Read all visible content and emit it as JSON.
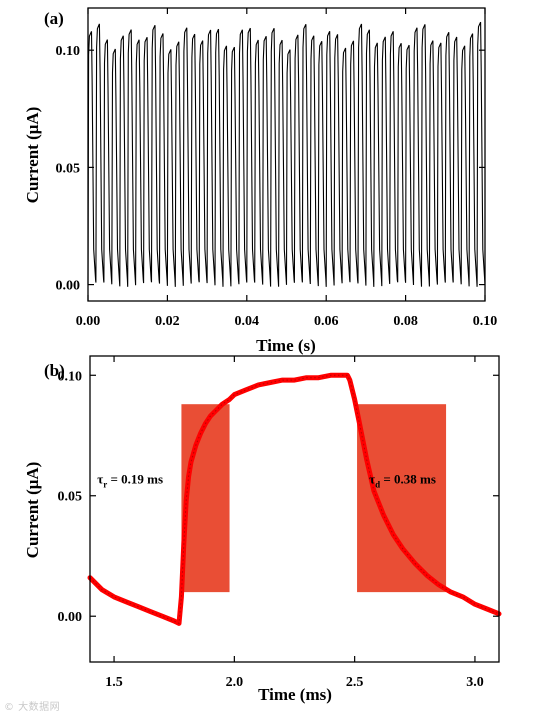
{
  "watermark": "© 大数据网",
  "chart_data": [
    {
      "panel_label": "(a)",
      "type": "line",
      "xlabel": "Time (s)",
      "ylabel": "Current (μA)",
      "xlim": [
        0.0,
        0.1
      ],
      "ylim": [
        -0.007,
        0.118
      ],
      "x_ticks": [
        "0.00",
        "0.02",
        "0.04",
        "0.06",
        "0.08",
        "0.10"
      ],
      "y_ticks": [
        "0.00",
        "0.05",
        "0.10"
      ],
      "x_tick_values": [
        0.0,
        0.02,
        0.04,
        0.06,
        0.08,
        0.1
      ],
      "y_tick_values": [
        0.0,
        0.05,
        0.1
      ],
      "grid": false,
      "line_color": "#000000",
      "cycles": 50,
      "period_s": 0.002,
      "signal_min": 0.0,
      "signal_max": 0.109,
      "series": [
        {
          "name": "",
          "description": "square-wave photoresponse, ~50 periodic on/off cycles between ~0.00 and ~0.109 μA"
        }
      ]
    },
    {
      "panel_label": "(b)",
      "type": "line",
      "xlabel": "Time (ms)",
      "ylabel": "Current (μA)",
      "xlim": [
        1.4,
        3.1
      ],
      "ylim": [
        -0.019,
        0.108
      ],
      "x_ticks": [
        "1.5",
        "2.0",
        "2.5",
        "3.0"
      ],
      "y_ticks": [
        "0.00",
        "0.05",
        "0.10"
      ],
      "x_tick_values": [
        1.5,
        2.0,
        2.5,
        3.0
      ],
      "y_tick_values": [
        0.0,
        0.05,
        0.1
      ],
      "grid": false,
      "line_color": "#ff0000",
      "shade_color": "#e8442a",
      "annotations": [
        {
          "text_main": "τ",
          "text_sub": "r",
          "text_rest": " = 0.19 ms",
          "x": 1.43,
          "y": 0.055
        },
        {
          "text_main": "τ",
          "text_sub": "d",
          "text_rest": " = 0.38 ms",
          "x": 2.56,
          "y": 0.055
        }
      ],
      "shaded_regions": [
        {
          "x0": 1.78,
          "x1": 1.98,
          "y0": 0.01,
          "y1": 0.088
        },
        {
          "x0": 2.51,
          "x1": 2.88,
          "y0": 0.01,
          "y1": 0.088
        }
      ],
      "series": [
        {
          "name": "",
          "x": [
            1.4,
            1.45,
            1.5,
            1.55,
            1.6,
            1.65,
            1.7,
            1.75,
            1.77,
            1.78,
            1.79,
            1.8,
            1.81,
            1.82,
            1.84,
            1.86,
            1.88,
            1.9,
            1.92,
            1.95,
            1.98,
            2.0,
            2.05,
            2.1,
            2.15,
            2.2,
            2.25,
            2.3,
            2.35,
            2.4,
            2.45,
            2.47,
            2.48,
            2.5,
            2.52,
            2.55,
            2.58,
            2.62,
            2.66,
            2.7,
            2.75,
            2.8,
            2.85,
            2.9,
            2.95,
            3.0,
            3.05,
            3.1
          ],
          "y": [
            0.016,
            0.011,
            0.008,
            0.006,
            0.004,
            0.002,
            0.0,
            -0.002,
            -0.003,
            0.008,
            0.03,
            0.048,
            0.058,
            0.064,
            0.071,
            0.076,
            0.08,
            0.083,
            0.085,
            0.088,
            0.09,
            0.092,
            0.094,
            0.096,
            0.097,
            0.098,
            0.098,
            0.099,
            0.099,
            0.1,
            0.1,
            0.1,
            0.098,
            0.09,
            0.08,
            0.065,
            0.052,
            0.042,
            0.034,
            0.028,
            0.022,
            0.017,
            0.013,
            0.01,
            0.008,
            0.005,
            0.003,
            0.001
          ]
        }
      ]
    }
  ]
}
